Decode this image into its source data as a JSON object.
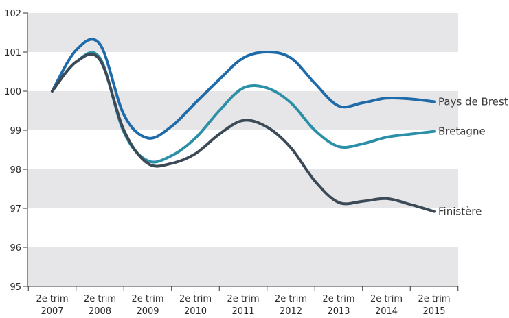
{
  "chart_data": {
    "type": "line",
    "x": [
      "2e trim 2007",
      "2e trim 2008",
      "2e trim 2009",
      "2e trim 2010",
      "2e trim 2011",
      "2e trim 2012",
      "2e trim 2013",
      "2e trim 2014",
      "2e trim 2015"
    ],
    "x_lines": [
      [
        "2e trim",
        "2007"
      ],
      [
        "2e trim",
        "2008"
      ],
      [
        "2e trim",
        "2009"
      ],
      [
        "2e trim",
        "2010"
      ],
      [
        "2e trim",
        "2011"
      ],
      [
        "2e trim",
        "2012"
      ],
      [
        "2e trim",
        "2013"
      ],
      [
        "2e trim",
        "2014"
      ],
      [
        "2e trim",
        "2015"
      ]
    ],
    "ylim": [
      95,
      102
    ],
    "yticks": [
      "95",
      "96",
      "97",
      "98",
      "99",
      "100",
      "101",
      "102"
    ],
    "grid": "alternating horizontal bands",
    "legend": "inline labels at line ends",
    "series": [
      {
        "name": "Pays de Brest",
        "color": "#1f6aa8",
        "points": [
          [
            0,
            100
          ],
          [
            0.5,
            101.05
          ],
          [
            1,
            101.2
          ],
          [
            1.5,
            99.4
          ],
          [
            2,
            98.8
          ],
          [
            2.5,
            99.1
          ],
          [
            3,
            99.7
          ],
          [
            3.5,
            100.3
          ],
          [
            4,
            100.85
          ],
          [
            4.5,
            101.0
          ],
          [
            5,
            100.85
          ],
          [
            5.5,
            100.2
          ],
          [
            6,
            99.62
          ],
          [
            6.5,
            99.7
          ],
          [
            7,
            99.82
          ],
          [
            7.5,
            99.8
          ],
          [
            8,
            99.73
          ]
        ]
      },
      {
        "name": "Bretagne",
        "color": "#2b8fa8",
        "points": [
          [
            0,
            100
          ],
          [
            0.5,
            100.75
          ],
          [
            1,
            100.85
          ],
          [
            1.5,
            98.95
          ],
          [
            2,
            98.22
          ],
          [
            2.5,
            98.35
          ],
          [
            3,
            98.8
          ],
          [
            3.5,
            99.5
          ],
          [
            4,
            100.08
          ],
          [
            4.5,
            100.08
          ],
          [
            5,
            99.7
          ],
          [
            5.5,
            99.0
          ],
          [
            6,
            98.58
          ],
          [
            6.5,
            98.65
          ],
          [
            7,
            98.82
          ],
          [
            7.5,
            98.9
          ],
          [
            8,
            98.97
          ]
        ]
      },
      {
        "name": "Finistère",
        "color": "#3b4a56",
        "points": [
          [
            0,
            100
          ],
          [
            0.5,
            100.75
          ],
          [
            1,
            100.8
          ],
          [
            1.5,
            99.0
          ],
          [
            2,
            98.15
          ],
          [
            2.5,
            98.15
          ],
          [
            3,
            98.4
          ],
          [
            3.5,
            98.9
          ],
          [
            4,
            99.25
          ],
          [
            4.5,
            99.08
          ],
          [
            5,
            98.55
          ],
          [
            5.5,
            97.7
          ],
          [
            6,
            97.15
          ],
          [
            6.5,
            97.18
          ],
          [
            7,
            97.25
          ],
          [
            7.5,
            97.1
          ],
          [
            8,
            96.92
          ]
        ]
      }
    ]
  }
}
